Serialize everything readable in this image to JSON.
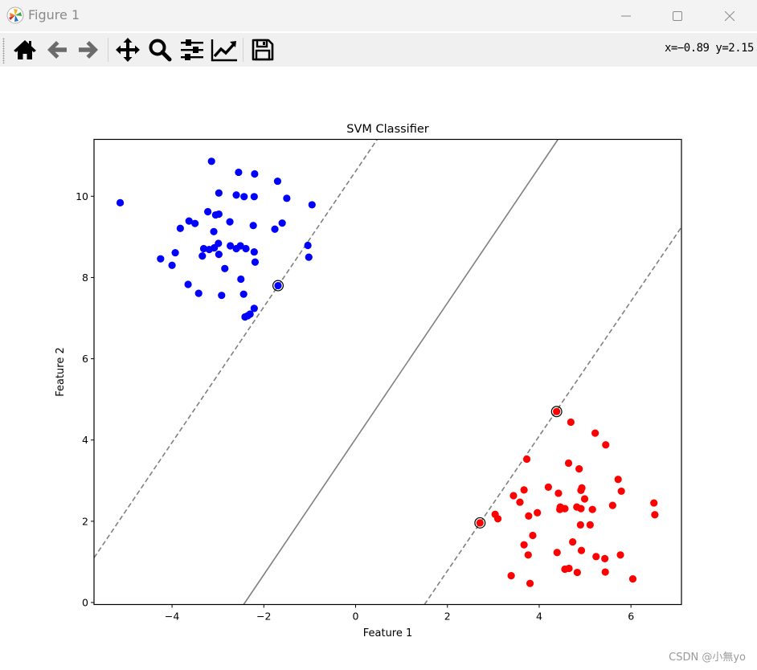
{
  "window": {
    "title": "Figure 1",
    "controls": {
      "minimize": "minimize-icon",
      "maximize": "maximize-icon",
      "close": "close-icon"
    }
  },
  "toolbar": {
    "tools": [
      {
        "name": "home",
        "icon": "home-icon"
      },
      {
        "name": "back",
        "icon": "arrow-left-icon"
      },
      {
        "name": "forward",
        "icon": "arrow-right-icon"
      },
      {
        "name": "pan",
        "icon": "move-icon"
      },
      {
        "name": "zoom",
        "icon": "magnifier-icon"
      },
      {
        "name": "configure-subplots",
        "icon": "sliders-icon"
      },
      {
        "name": "edit-axis",
        "icon": "line-chart-icon"
      },
      {
        "name": "save",
        "icon": "floppy-disk-icon"
      }
    ],
    "coordinates": "x=−0.89 y=2.15"
  },
  "watermark": "CSDN @小無yo",
  "colors": {
    "class_0": "#0000ff",
    "class_1": "#ff0000",
    "boundary": "#808080",
    "support_vector_edge": "#000000"
  },
  "chart_data": {
    "type": "scatter",
    "title": "SVM Classifier",
    "xlabel": "Feature 1",
    "ylabel": "Feature 2",
    "xlim": [
      -5.7,
      7.1
    ],
    "ylim": [
      -0.05,
      11.4
    ],
    "xticks": [
      -4,
      -2,
      0,
      2,
      4,
      6
    ],
    "xtick_labels": [
      "−4",
      "−2",
      "0",
      "2",
      "4",
      "6"
    ],
    "yticks": [
      0,
      2,
      4,
      6,
      8,
      10
    ],
    "ytick_labels": [
      "0",
      "2",
      "4",
      "6",
      "8",
      "10"
    ],
    "grid": false,
    "legend": null,
    "series": [
      {
        "name": "Class 0",
        "color": "#0000ff",
        "points": [
          [
            -5.13,
            9.84
          ],
          [
            -3.14,
            10.86
          ],
          [
            -2.55,
            10.59
          ],
          [
            -2.2,
            10.55
          ],
          [
            -1.7,
            10.37
          ],
          [
            -2.98,
            10.08
          ],
          [
            -2.6,
            10.03
          ],
          [
            -2.43,
            9.99
          ],
          [
            -2.21,
            9.99
          ],
          [
            -1.5,
            9.95
          ],
          [
            -0.95,
            9.79
          ],
          [
            -3.22,
            9.62
          ],
          [
            -3.05,
            9.54
          ],
          [
            -2.98,
            9.56
          ],
          [
            -3.63,
            9.39
          ],
          [
            -3.5,
            9.33
          ],
          [
            -2.74,
            9.37
          ],
          [
            -1.6,
            9.34
          ],
          [
            -2.23,
            9.28
          ],
          [
            -3.82,
            9.21
          ],
          [
            -1.76,
            9.19
          ],
          [
            -3.09,
            9.13
          ],
          [
            -3.31,
            8.71
          ],
          [
            -3.19,
            8.69
          ],
          [
            -3.08,
            8.73
          ],
          [
            -2.99,
            8.84
          ],
          [
            -2.73,
            8.78
          ],
          [
            -2.6,
            8.71
          ],
          [
            -2.51,
            8.78
          ],
          [
            -2.39,
            8.71
          ],
          [
            -2.21,
            8.63
          ],
          [
            -1.04,
            8.79
          ],
          [
            -4.25,
            8.46
          ],
          [
            -3.93,
            8.61
          ],
          [
            -4.0,
            8.3
          ],
          [
            -3.34,
            8.53
          ],
          [
            -2.98,
            8.57
          ],
          [
            -2.19,
            8.38
          ],
          [
            -2.85,
            8.22
          ],
          [
            -1.02,
            8.5
          ],
          [
            -2.5,
            7.96
          ],
          [
            -3.65,
            7.83
          ],
          [
            -3.42,
            7.61
          ],
          [
            -2.92,
            7.56
          ],
          [
            -2.44,
            7.59
          ],
          [
            -2.21,
            7.24
          ],
          [
            -2.3,
            7.1
          ],
          [
            -2.41,
            7.03
          ],
          [
            -2.35,
            7.06
          ]
        ],
        "support_vectors": [
          [
            -1.69,
            7.8
          ]
        ]
      },
      {
        "name": "Class 1",
        "color": "#ff0000",
        "points": [
          [
            4.69,
            4.44
          ],
          [
            5.22,
            4.17
          ],
          [
            5.45,
            3.88
          ],
          [
            3.73,
            3.53
          ],
          [
            4.64,
            3.43
          ],
          [
            4.87,
            3.29
          ],
          [
            5.72,
            3.03
          ],
          [
            5.79,
            2.74
          ],
          [
            4.2,
            2.84
          ],
          [
            4.91,
            2.76
          ],
          [
            4.93,
            2.82
          ],
          [
            3.67,
            2.77
          ],
          [
            3.44,
            2.63
          ],
          [
            4.42,
            2.69
          ],
          [
            4.99,
            2.55
          ],
          [
            3.58,
            2.47
          ],
          [
            4.46,
            2.35
          ],
          [
            4.45,
            2.29
          ],
          [
            4.56,
            2.31
          ],
          [
            4.82,
            2.35
          ],
          [
            4.91,
            2.31
          ],
          [
            5.16,
            2.29
          ],
          [
            5.6,
            2.39
          ],
          [
            3.96,
            2.21
          ],
          [
            3.77,
            2.13
          ],
          [
            3.04,
            2.17
          ],
          [
            3.1,
            2.06
          ],
          [
            6.5,
            2.45
          ],
          [
            6.52,
            2.16
          ],
          [
            4.9,
            1.91
          ],
          [
            5.11,
            1.91
          ],
          [
            3.86,
            1.65
          ],
          [
            3.67,
            1.42
          ],
          [
            4.73,
            1.49
          ],
          [
            3.76,
            1.17
          ],
          [
            4.39,
            1.23
          ],
          [
            4.92,
            1.28
          ],
          [
            5.24,
            1.13
          ],
          [
            5.43,
            1.08
          ],
          [
            5.77,
            1.17
          ],
          [
            4.56,
            0.82
          ],
          [
            4.65,
            0.84
          ],
          [
            4.83,
            0.74
          ],
          [
            5.44,
            0.75
          ],
          [
            3.39,
            0.66
          ],
          [
            3.8,
            0.47
          ],
          [
            6.04,
            0.58
          ]
        ],
        "support_vectors": [
          [
            4.38,
            4.7
          ],
          [
            2.71,
            1.96
          ]
        ]
      }
    ],
    "lines": [
      {
        "name": "decision-boundary",
        "style": "solid",
        "color": "#808080",
        "from": [
          -2.44,
          -0.05
        ],
        "to": [
          4.41,
          11.4
        ]
      },
      {
        "name": "margin-lower",
        "style": "dashed",
        "color": "#808080",
        "from": [
          1.5,
          -0.05
        ],
        "to": [
          7.1,
          9.24
        ]
      },
      {
        "name": "margin-upper",
        "style": "dashed",
        "color": "#808080",
        "from": [
          -5.7,
          1.1
        ],
        "to": [
          0.47,
          11.4
        ]
      }
    ]
  }
}
